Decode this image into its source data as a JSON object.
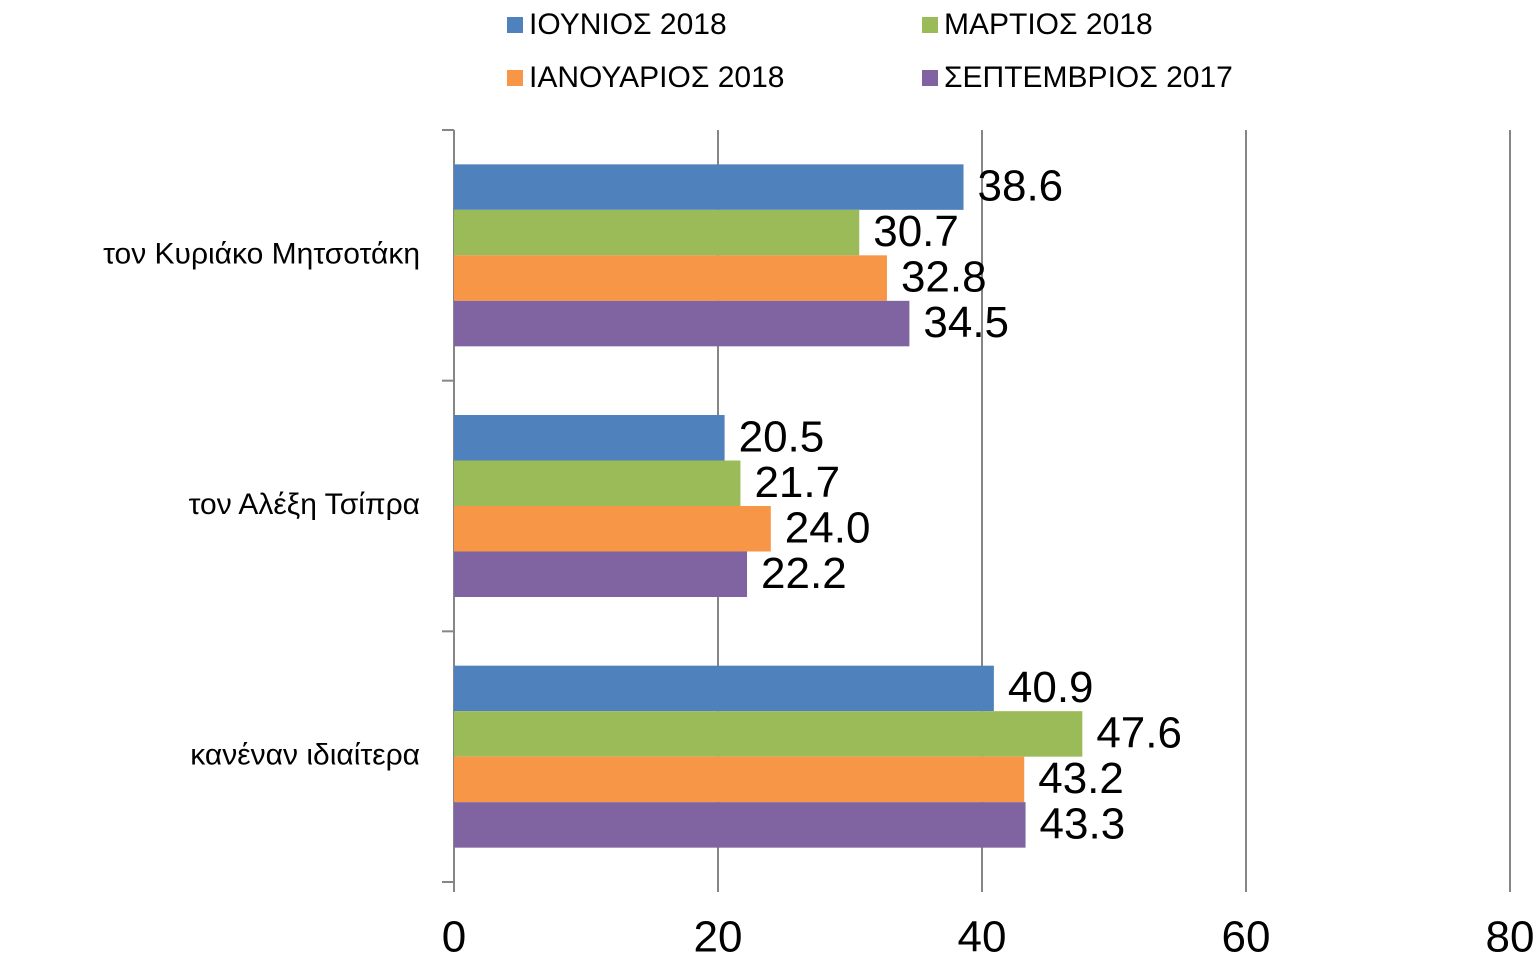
{
  "chart_data": {
    "type": "bar",
    "orientation": "horizontal",
    "categories": [
      "τον Κυριάκο Μητσοτάκη",
      "τον Αλέξη Τσίπρα",
      "κανέναν ιδιαίτερα"
    ],
    "series": [
      {
        "name": "ΙΟΥΝΙΟΣ 2018",
        "color": "#4f81bd",
        "values": [
          38.6,
          20.5,
          40.9
        ],
        "value_labels": [
          "38.6",
          "20.5",
          "40.9"
        ]
      },
      {
        "name": "ΜΑΡΤΙΟΣ 2018",
        "color": "#9bbb59",
        "values": [
          30.7,
          21.7,
          47.6
        ],
        "value_labels": [
          "30.7",
          "21.7",
          "47.6"
        ]
      },
      {
        "name": "ΙΑΝΟΥΑΡΙΟΣ 2018",
        "color": "#f79646",
        "values": [
          32.8,
          24,
          43.2
        ],
        "value_labels": [
          "32.8",
          "24.0",
          "43.2"
        ]
      },
      {
        "name": "ΣΕΠΤΕΜΒΡΙΟΣ 2017",
        "color": "#8064a2",
        "values": [
          34.5,
          22.2,
          43.3
        ],
        "value_labels": [
          "34.5",
          "22.2",
          "43.3"
        ]
      }
    ],
    "xlim": [
      0,
      80
    ],
    "xticks": [
      0,
      20,
      40,
      60,
      80
    ],
    "grid": true
  }
}
